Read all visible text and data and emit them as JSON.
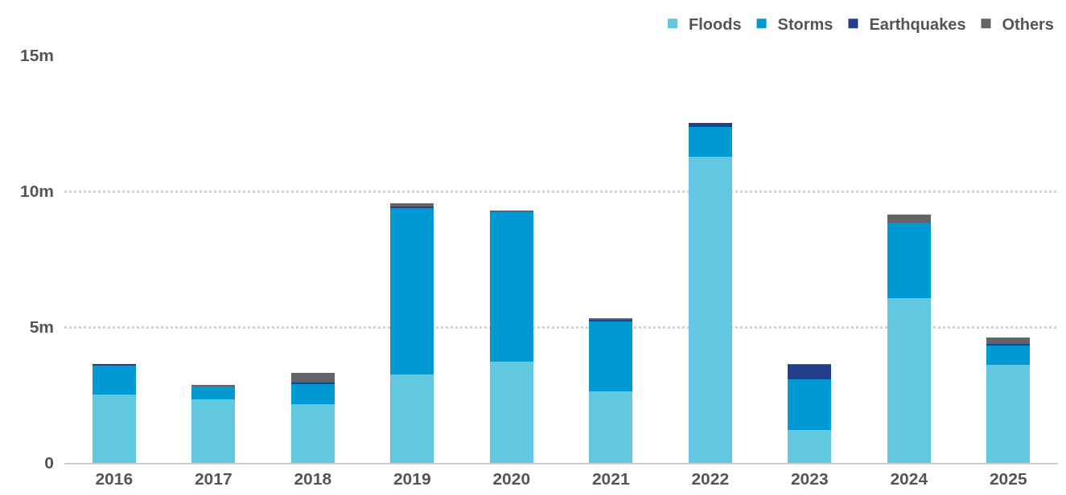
{
  "chart_data": {
    "type": "bar",
    "stacked": true,
    "categories": [
      "2016",
      "2017",
      "2018",
      "2019",
      "2020",
      "2021",
      "2022",
      "2023",
      "2024",
      "2025"
    ],
    "series": [
      {
        "name": "Floods",
        "color": "#62c8e0",
        "values": [
          2.51,
          2.33,
          2.15,
          3.26,
          3.73,
          2.63,
          11.26,
          1.22,
          6.07,
          3.62
        ]
      },
      {
        "name": "Storms",
        "color": "#0099d3",
        "values": [
          1.07,
          0.51,
          0.75,
          6.12,
          5.53,
          2.6,
          1.11,
          1.86,
          2.77,
          0.71
        ]
      },
      {
        "name": "Earthquakes",
        "color": "#233e8b",
        "values": [
          0.03,
          0,
          0.05,
          0.05,
          0,
          0.04,
          0.15,
          0.54,
          0,
          0.04
        ]
      },
      {
        "name": "Others",
        "color": "#636466",
        "values": [
          0,
          0.02,
          0.37,
          0.13,
          0.03,
          0.03,
          0,
          0.01,
          0.3,
          0.26
        ]
      }
    ],
    "ylim": [
      0,
      15
    ],
    "yticks": [
      0,
      {
        "value": 5,
        "label": "5m"
      },
      {
        "value": 10,
        "label": "10m"
      },
      {
        "value": 15,
        "label": "15m"
      }
    ],
    "grid": "y",
    "legend": "top right"
  }
}
